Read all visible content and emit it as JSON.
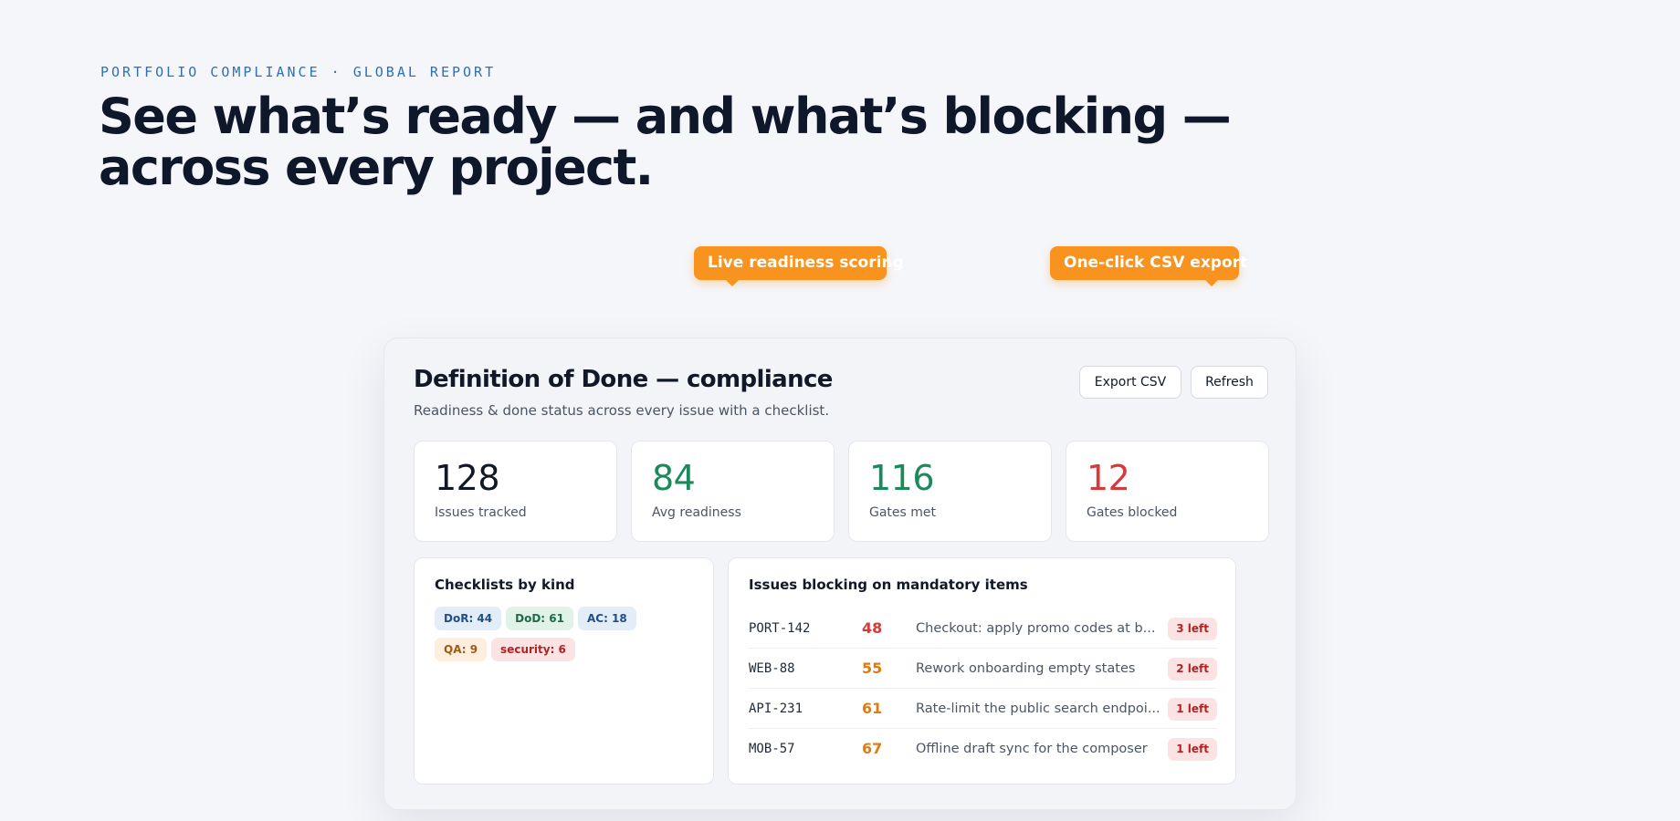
{
  "hero": {
    "eyebrow": "PORTFOLIO COMPLIANCE · GLOBAL REPORT",
    "headline": "See what’s ready — and what’s blocking — across every project."
  },
  "callouts": [
    {
      "label": "Live readiness scoring",
      "color": "#f7931e"
    },
    {
      "label": "One-click CSV export",
      "color": "#f7931e"
    }
  ],
  "card": {
    "title": "Definition of Done — compliance",
    "subtitle": "Readiness & done status across every issue with a checklist.",
    "buttons": {
      "export_label": "Export CSV",
      "refresh_label": "Refresh"
    },
    "stats": [
      {
        "value": "128",
        "label": "Issues tracked",
        "color": "#111827"
      },
      {
        "value": "84",
        "label": "Avg readiness",
        "color": "#1b8a5a"
      },
      {
        "value": "116",
        "label": "Gates met",
        "color": "#1b8a5a"
      },
      {
        "value": "12",
        "label": "Gates blocked",
        "color": "#d63b3b"
      }
    ],
    "checklists": {
      "title": "Checklists by kind",
      "chips": [
        {
          "label": "DoR: 44",
          "tone": "blue"
        },
        {
          "label": "DoD: 61",
          "tone": "green"
        },
        {
          "label": "AC: 18",
          "tone": "blue"
        },
        {
          "label": "QA: 9",
          "tone": "orange"
        },
        {
          "label": "security: 6",
          "tone": "red"
        }
      ]
    },
    "blocking": {
      "title": "Issues blocking on mandatory items",
      "rows": [
        {
          "key": "PORT-142",
          "score": "48",
          "score_color": "#d63b3b",
          "desc": "Checkout: apply promo codes at b...",
          "left": "3 left"
        },
        {
          "key": "WEB-88",
          "score": "55",
          "score_color": "#e07b12",
          "desc": "Rework onboarding empty states",
          "left": "2 left"
        },
        {
          "key": "API-231",
          "score": "61",
          "score_color": "#e07b12",
          "desc": "Rate-limit the public search endpoi...",
          "left": "1 left"
        },
        {
          "key": "MOB-57",
          "score": "67",
          "score_color": "#e07b12",
          "desc": "Offline draft sync for the composer",
          "left": "1 left"
        }
      ]
    }
  }
}
